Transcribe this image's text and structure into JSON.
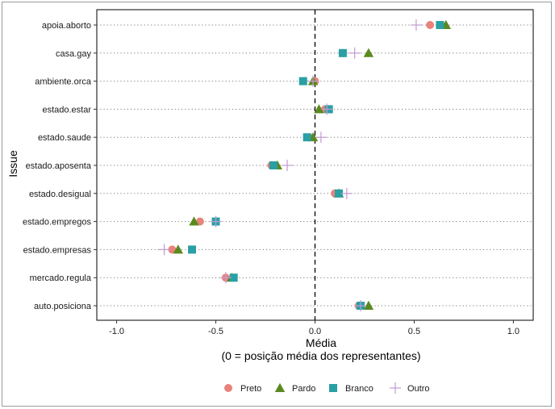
{
  "chart_data": {
    "type": "scatter",
    "xlabel_line1": "Média",
    "xlabel_line2": "(0 = posição média dos representantes)",
    "ylabel": "Issue",
    "xlim": [
      -1.1,
      1.1
    ],
    "x_ticks": [
      -1.0,
      -0.5,
      0.0,
      0.5,
      1.0
    ],
    "x_tick_labels": [
      "-1.0",
      "-0.5",
      "0.0",
      "0.5",
      "1.0"
    ],
    "categories": [
      "apoia.aborto",
      "casa.gay",
      "ambiente.orca",
      "estado.estar",
      "estado.saude",
      "estado.aposenta",
      "estado.desigual",
      "estado.empregos",
      "estado.empresas",
      "mercado.regula",
      "auto.posiciona"
    ],
    "reference_line": {
      "x": 0,
      "style": "dashed"
    },
    "grid": "horizontal-dotted",
    "legend_position": "bottom",
    "series": [
      {
        "name": "Preto",
        "marker": "circle",
        "color": "#e8837b",
        "values": [
          0.58,
          0.14,
          0.0,
          0.05,
          -0.03,
          -0.22,
          0.1,
          -0.58,
          -0.72,
          -0.45,
          0.22
        ]
      },
      {
        "name": "Pardo",
        "marker": "triangle",
        "color": "#5a8a1e",
        "values": [
          0.66,
          0.27,
          -0.01,
          0.02,
          -0.01,
          -0.19,
          0.12,
          -0.61,
          -0.69,
          -0.42,
          0.27
        ]
      },
      {
        "name": "Branco",
        "marker": "square",
        "color": "#2aa0a4",
        "values": [
          0.63,
          0.14,
          -0.06,
          0.07,
          -0.04,
          -0.21,
          0.12,
          -0.5,
          -0.62,
          -0.41,
          0.23
        ]
      },
      {
        "name": "Outro",
        "marker": "plus",
        "color": "#c39bd3",
        "values": [
          0.51,
          0.2,
          -0.01,
          0.06,
          0.03,
          -0.14,
          0.16,
          -0.5,
          -0.76,
          -0.45,
          0.23
        ]
      }
    ]
  }
}
